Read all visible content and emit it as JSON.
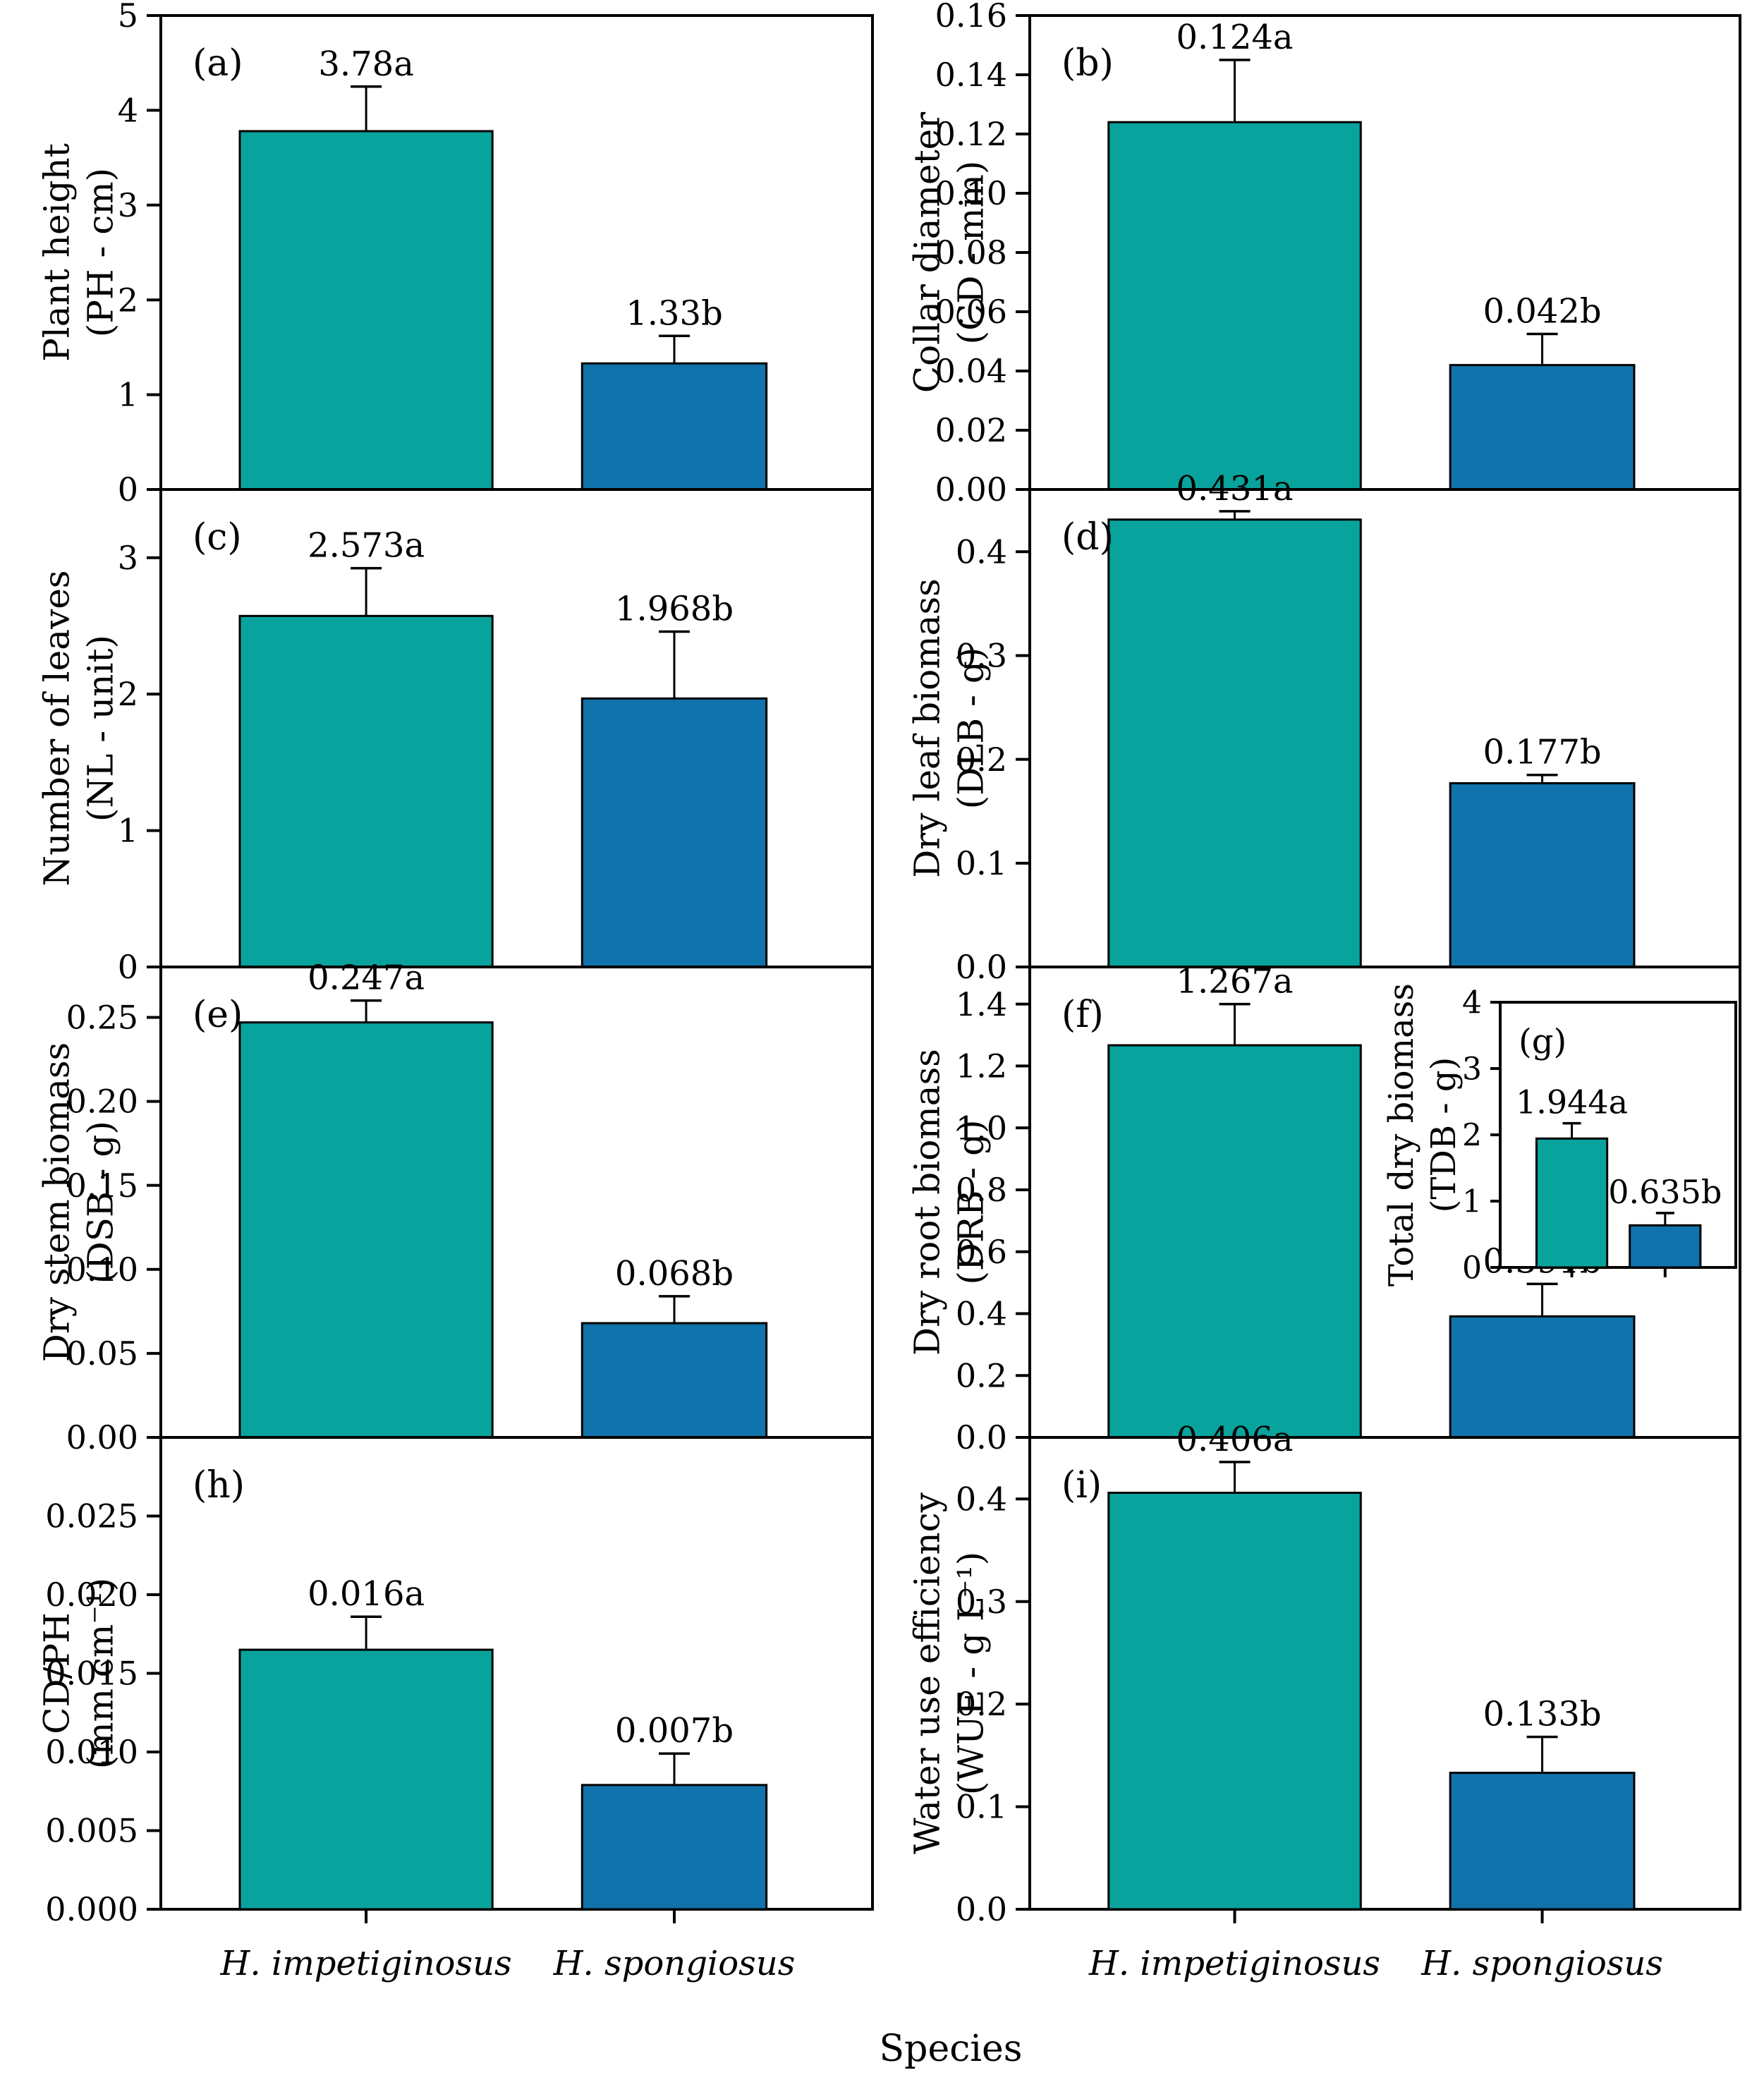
{
  "figure": {
    "xlabel": "Species",
    "categories": [
      "H. impetiginosus",
      "H. spongiosus"
    ],
    "series_colors": [
      "#08a39d",
      "#1073ab"
    ],
    "axis_color": "#000000",
    "background": "#ffffff"
  },
  "chart_data": [
    {
      "id": "a",
      "type": "bar",
      "panel_label": "(a)",
      "ylabel": [
        "Plant height",
        "(PH - cm)"
      ],
      "categories": [
        "H. impetiginosus",
        "H. spongiosus"
      ],
      "ylim": [
        0,
        5
      ],
      "ymax": 5,
      "yticks": [
        0,
        1,
        2,
        3,
        4,
        5
      ],
      "ytick_labels": [
        "0",
        "1",
        "2",
        "3",
        "4",
        "5"
      ],
      "values": [
        3.78,
        1.33
      ],
      "errors": [
        0.47,
        0.29
      ],
      "value_labels": [
        "3.78a",
        "1.33b"
      ]
    },
    {
      "id": "b",
      "type": "bar",
      "panel_label": "(b)",
      "ylabel": [
        "Collar diameter",
        "(CD - mm)"
      ],
      "categories": [
        "H. impetiginosus",
        "H. spongiosus"
      ],
      "ylim": [
        0,
        0.16
      ],
      "ymax": 0.16,
      "yticks": [
        0,
        0.02,
        0.04,
        0.06,
        0.08,
        0.1,
        0.12,
        0.14,
        0.16
      ],
      "ytick_labels": [
        "0.00",
        "0.02",
        "0.04",
        "0.06",
        "0.08",
        "0.10",
        "0.12",
        "0.14",
        "0.16"
      ],
      "values": [
        0.124,
        0.042
      ],
      "errors": [
        0.021,
        0.0105
      ],
      "value_labels": [
        "0.124a",
        "0.042b"
      ]
    },
    {
      "id": "c",
      "type": "bar",
      "panel_label": "(c)",
      "ylabel": [
        "Number of leaves",
        "(NL - unit)"
      ],
      "categories": [
        "H. impetiginosus",
        "H. spongiosus"
      ],
      "ylim": [
        0,
        3.5
      ],
      "ymax": 3.5,
      "yticks": [
        0,
        1,
        2,
        3
      ],
      "ytick_labels": [
        "0",
        "1",
        "2",
        "3"
      ],
      "values": [
        2.573,
        1.968
      ],
      "errors": [
        0.35,
        0.49
      ],
      "value_labels": [
        "2.573a",
        "1.968b"
      ]
    },
    {
      "id": "d",
      "type": "bar",
      "panel_label": "(d)",
      "ylabel": [
        "Dry leaf biomass",
        "(DLB - g)"
      ],
      "categories": [
        "H. impetiginosus",
        "H. spongiosus"
      ],
      "ylim": [
        0,
        0.46
      ],
      "ymax": 0.46,
      "yticks": [
        0,
        0.1,
        0.2,
        0.3,
        0.4
      ],
      "ytick_labels": [
        "0.0",
        "0.1",
        "0.2",
        "0.3",
        "0.4"
      ],
      "values": [
        0.431,
        0.177
      ],
      "errors": [
        0.008,
        0.008
      ],
      "value_labels": [
        "0.431a",
        "0.177b"
      ]
    },
    {
      "id": "e",
      "type": "bar",
      "panel_label": "(e)",
      "ylabel": [
        "Dry stem biomass",
        "(DSB - g)"
      ],
      "categories": [
        "H. impetiginosus",
        "H. spongiosus"
      ],
      "ylim": [
        0,
        0.28
      ],
      "ymax": 0.28,
      "yticks": [
        0,
        0.05,
        0.1,
        0.15,
        0.2,
        0.25
      ],
      "ytick_labels": [
        "0.00",
        "0.05",
        "0.10",
        "0.15",
        "0.20",
        "0.25"
      ],
      "values": [
        0.247,
        0.068
      ],
      "errors": [
        0.013,
        0.016
      ],
      "value_labels": [
        "0.247a",
        "0.068b"
      ]
    },
    {
      "id": "f",
      "type": "bar",
      "panel_label": "(f)",
      "ylabel": [
        "Dry root biomass",
        "(DRB - g)"
      ],
      "categories": [
        "H. impetiginosus",
        "H. spongiosus"
      ],
      "ylim": [
        0,
        1.52
      ],
      "ymax": 1.52,
      "yticks": [
        0,
        0.2,
        0.4,
        0.6,
        0.8,
        1.0,
        1.2,
        1.4
      ],
      "ytick_labels": [
        "0.0",
        "0.2",
        "0.4",
        "0.6",
        "0.8",
        "1.0",
        "1.2",
        "1.4"
      ],
      "values": [
        1.267,
        0.391
      ],
      "errors": [
        0.133,
        0.105
      ],
      "value_labels": [
        "1.267a",
        "0.391b"
      ]
    },
    {
      "id": "g",
      "type": "bar",
      "panel_label": "(g)",
      "inset": true,
      "ylabel": [
        "Total dry biomass",
        "(TDB - g)"
      ],
      "categories": [
        "H. impetiginosus",
        "H. spongiosus"
      ],
      "ylim": [
        0,
        4
      ],
      "ymax": 4,
      "yticks": [
        0,
        1,
        2,
        3,
        4
      ],
      "ytick_labels": [
        "0",
        "1",
        "2",
        "3",
        "4"
      ],
      "values": [
        1.944,
        0.635
      ],
      "errors": [
        0.23,
        0.185
      ],
      "value_labels": [
        "1.944a",
        "0.635b"
      ]
    },
    {
      "id": "h",
      "type": "bar",
      "panel_label": "(h)",
      "ylabel": [
        "CD/PH",
        "(mm cm⁻¹)"
      ],
      "categories": [
        "H. impetiginosus",
        "H. spongiosus"
      ],
      "ylim": [
        0,
        0.03
      ],
      "ymax": 0.03,
      "yticks": [
        0,
        0.005,
        0.01,
        0.015,
        0.02,
        0.025
      ],
      "ytick_labels": [
        "0.000",
        "0.005",
        "0.010",
        "0.015",
        "0.020",
        "0.025"
      ],
      "values": [
        0.0165,
        0.0079
      ],
      "errors": [
        0.0021,
        0.002
      ],
      "value_labels": [
        "0.016a",
        "0.007b"
      ]
    },
    {
      "id": "i",
      "type": "bar",
      "panel_label": "(i)",
      "ylabel": [
        "Water use efficiency",
        "(WUE - g L⁻¹)"
      ],
      "categories": [
        "H. impetiginosus",
        "H. spongiosus"
      ],
      "ylim": [
        0,
        0.46
      ],
      "ymax": 0.46,
      "yticks": [
        0,
        0.1,
        0.2,
        0.3,
        0.4
      ],
      "ytick_labels": [
        "0.0",
        "0.1",
        "0.2",
        "0.3",
        "0.4"
      ],
      "values": [
        0.406,
        0.133
      ],
      "errors": [
        0.03,
        0.035
      ],
      "value_labels": [
        "0.406a",
        "0.133b"
      ]
    }
  ]
}
